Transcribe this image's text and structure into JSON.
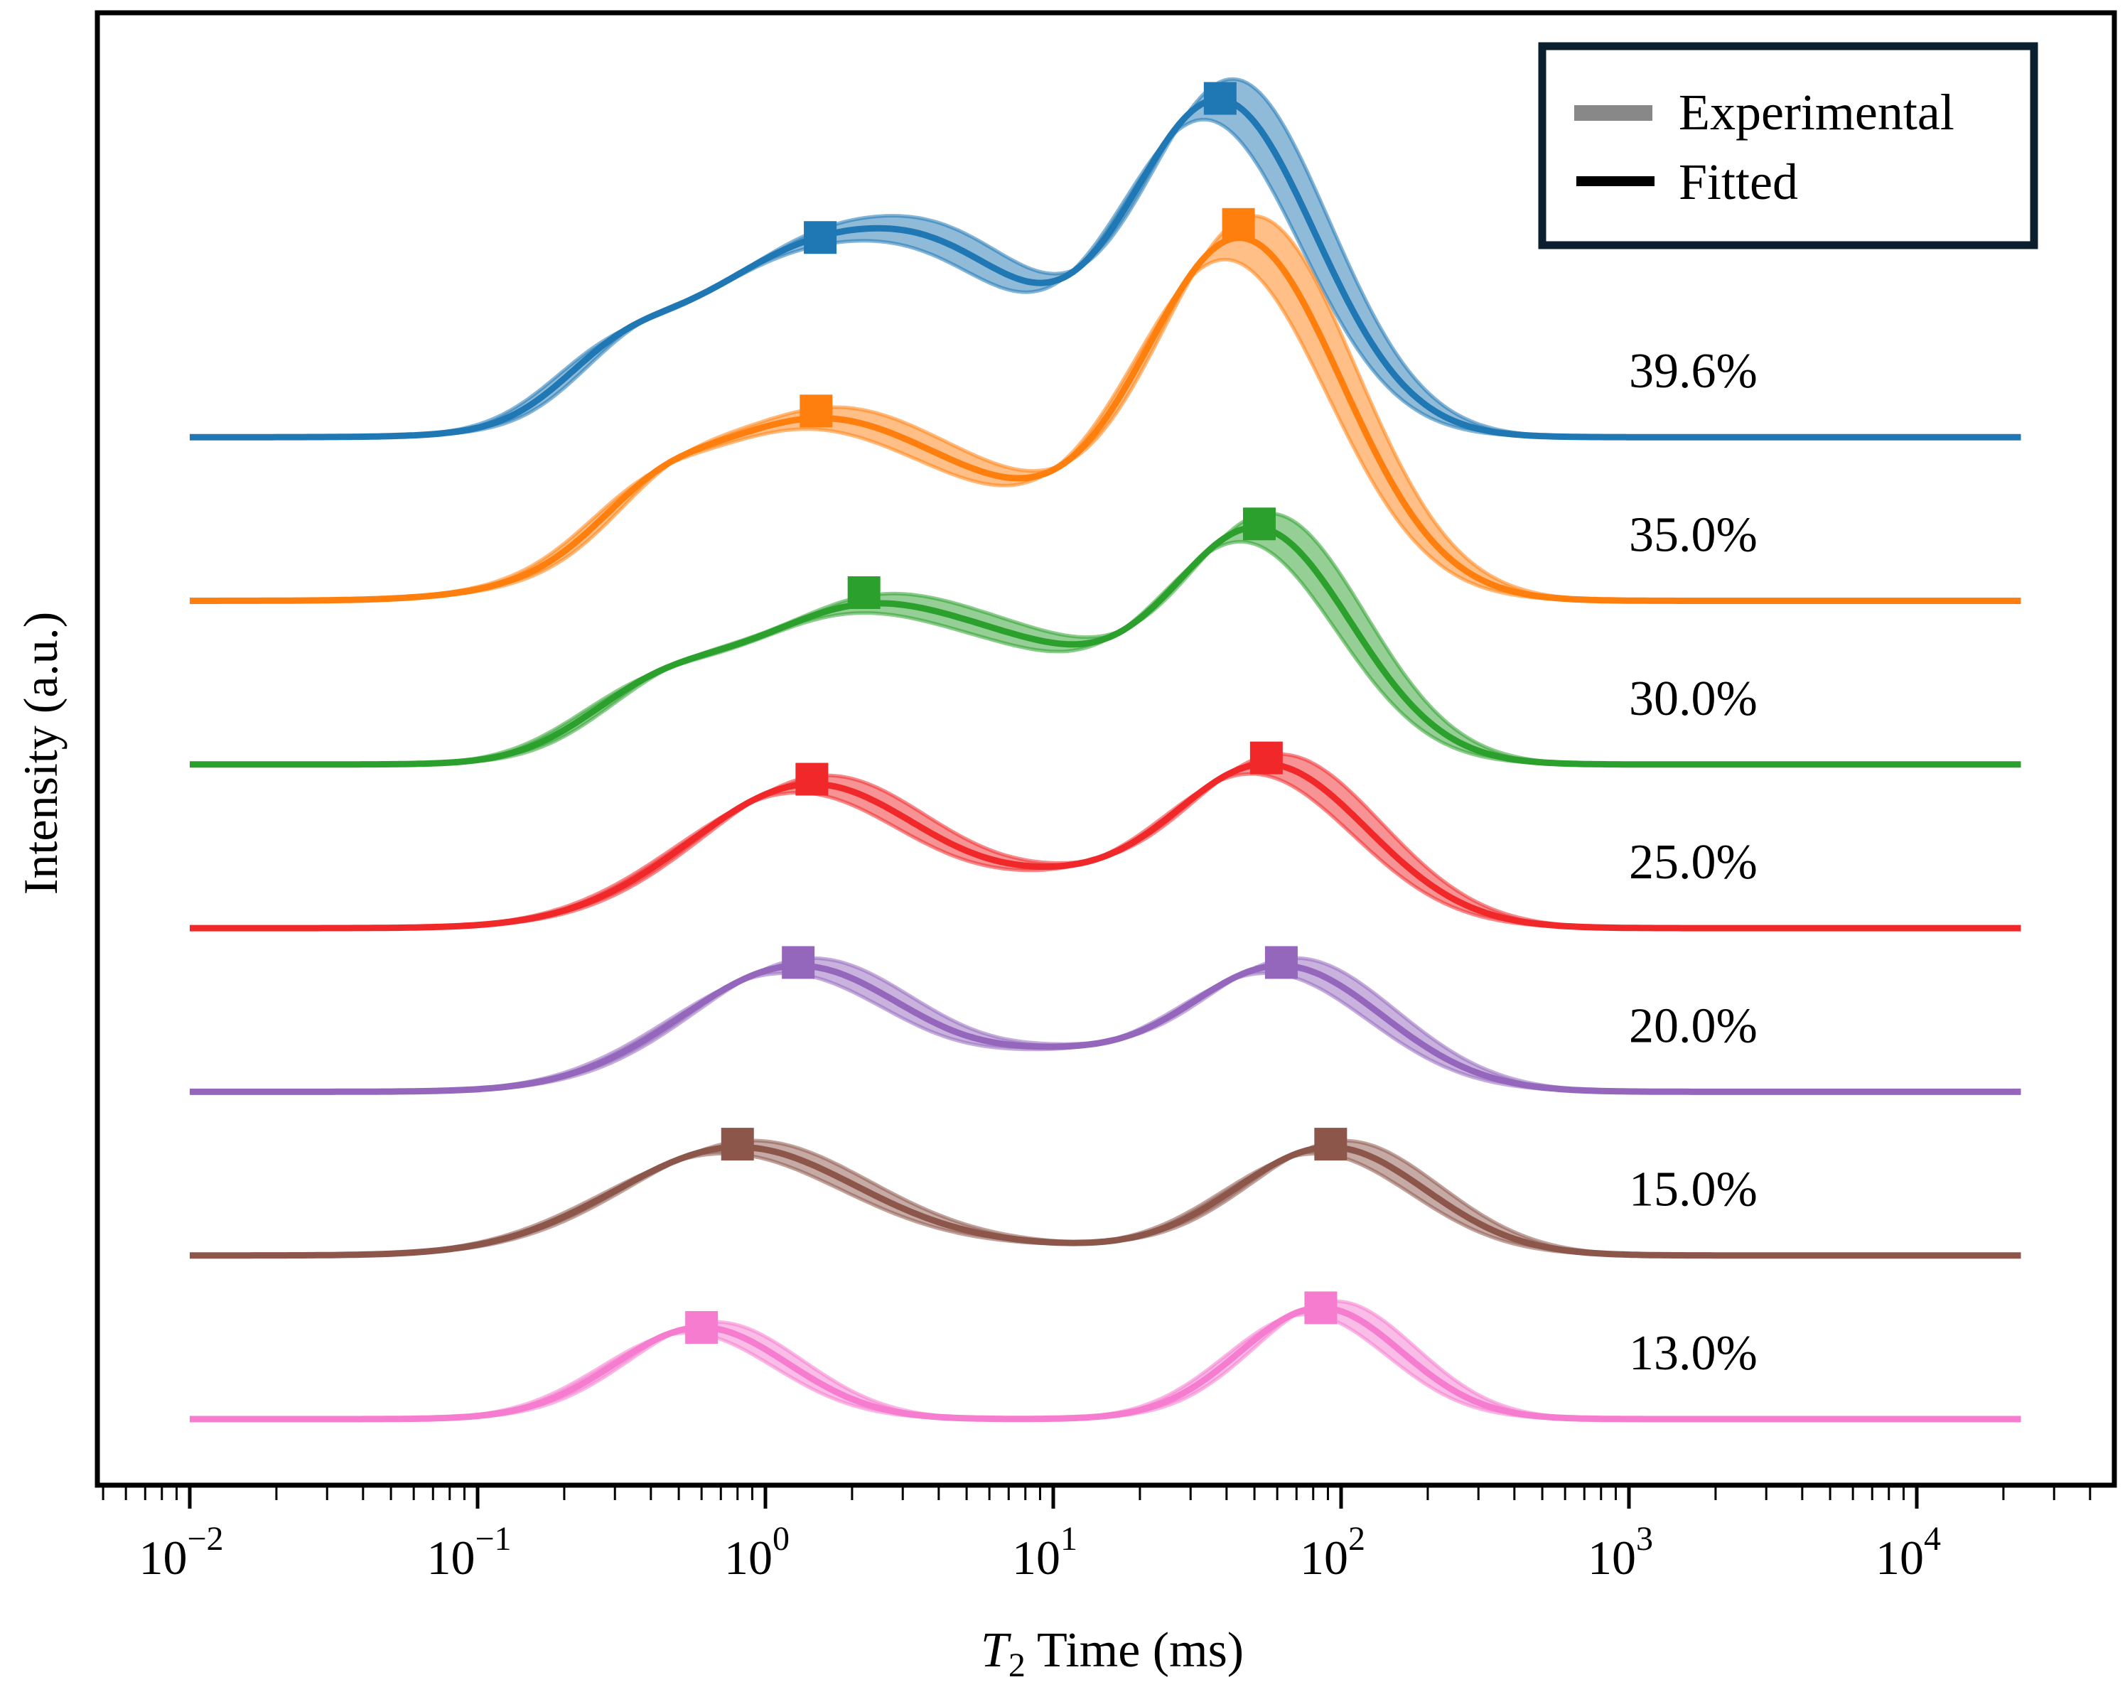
{
  "chart_data": {
    "type": "line",
    "title": "",
    "xlabel_italic": "T",
    "xlabel_sub": "2",
    "xlabel_rest": " Time (ms)",
    "ylabel": "Intensity (a.u.)",
    "xscale": "log",
    "xlim": [
      0.0048,
      40000
    ],
    "data_range": [
      0.01,
      23000
    ],
    "xticks": [
      {
        "value": 0.01,
        "base": "10",
        "exp": "−2"
      },
      {
        "value": 0.1,
        "base": "10",
        "exp": "−1"
      },
      {
        "value": 1,
        "base": "10",
        "exp": "0"
      },
      {
        "value": 10,
        "base": "10",
        "exp": "1"
      },
      {
        "value": 100,
        "base": "10",
        "exp": "2"
      },
      {
        "value": 1000,
        "base": "10",
        "exp": "3"
      },
      {
        "value": 10000,
        "base": "10",
        "exp": "4"
      }
    ],
    "yticks_shown": false,
    "legend": {
      "placement": "top-right",
      "border_color": "#0b1f2e",
      "items": [
        {
          "label": "Experimental",
          "color": "#888888"
        },
        {
          "label": "Fitted",
          "color": "#000000"
        }
      ]
    },
    "series": [
      {
        "name": "39.6%",
        "color": "#1f77b4",
        "offset": 6,
        "components": [
          [
            1.4,
            1.1,
            0.45
          ],
          [
            5,
            0.55,
            0.3
          ],
          [
            38,
            2.05,
            0.33
          ],
          [
            0.3,
            0.25,
            0.2
          ]
        ],
        "peaks": [
          [
            1.55,
            1.22
          ],
          [
            38,
            2.07
          ]
        ]
      },
      {
        "name": "35.0%",
        "color": "#ff7f0e",
        "offset": 5,
        "components": [
          [
            1.5,
            1.1,
            0.5
          ],
          [
            45,
            2.2,
            0.35
          ],
          [
            0.4,
            0.2,
            0.2
          ],
          [
            7,
            0.15,
            0.3
          ]
        ],
        "peaks": [
          [
            1.5,
            1.16
          ],
          [
            44,
            2.3
          ]
        ]
      },
      {
        "name": "30.0%",
        "color": "#2ca02c",
        "offset": 4,
        "components": [
          [
            2.2,
            0.95,
            0.45
          ],
          [
            0.4,
            0.3,
            0.25
          ],
          [
            52,
            1.42,
            0.32
          ],
          [
            10,
            0.3,
            0.3
          ]
        ],
        "peaks": [
          [
            2.2,
            1.05
          ],
          [
            52,
            1.47
          ]
        ]
      },
      {
        "name": "25.0%",
        "color": "#f0282a",
        "offset": 3,
        "components": [
          [
            1.45,
            0.88,
            0.42
          ],
          [
            55,
            1.0,
            0.35
          ],
          [
            10,
            0.15,
            0.25
          ]
        ],
        "peaks": [
          [
            1.45,
            0.91
          ],
          [
            55,
            1.04
          ]
        ]
      },
      {
        "name": "20.0%",
        "color": "#9467bd",
        "offset": 2,
        "components": [
          [
            1.3,
            0.77,
            0.4
          ],
          [
            62,
            0.77,
            0.35
          ],
          [
            10,
            0.15,
            0.25
          ]
        ],
        "peaks": [
          [
            1.3,
            0.79
          ],
          [
            62,
            0.79
          ]
        ]
      },
      {
        "name": "15.0%",
        "color": "#8c564b",
        "offset": 1,
        "components": [
          [
            0.8,
            0.66,
            0.42
          ],
          [
            92,
            0.66,
            0.33
          ],
          [
            8,
            0.05,
            0.4
          ]
        ],
        "peaks": [
          [
            0.8,
            0.68
          ],
          [
            92,
            0.68
          ]
        ]
      },
      {
        "name": "13.0%",
        "color": "#f57ccf",
        "offset": 0,
        "components": [
          [
            0.6,
            0.56,
            0.3
          ],
          [
            85,
            0.68,
            0.28
          ]
        ],
        "peaks": [
          [
            0.6,
            0.56
          ],
          [
            85,
            0.68
          ]
        ]
      }
    ]
  }
}
